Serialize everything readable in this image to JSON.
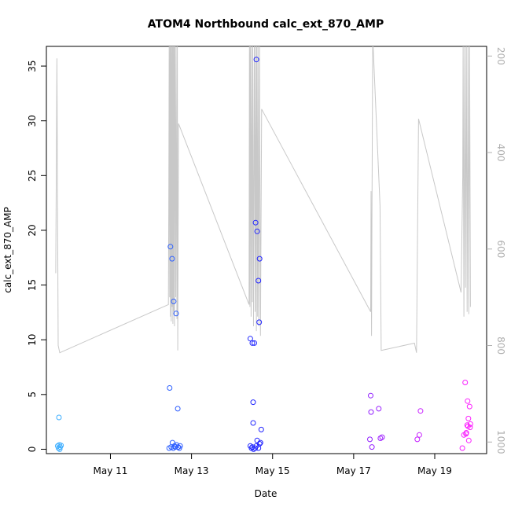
{
  "chart_data": {
    "type": "scatter",
    "title": "ATOM4 Northbound calc_ext_870_AMP",
    "xlabel": "Date",
    "ylabel": "calc_ext_870_AMP",
    "x_tick_labels": [
      "May 11",
      "May 13",
      "May 15",
      "May 17",
      "May 19"
    ],
    "x_tick_days": [
      11,
      13,
      15,
      17,
      19
    ],
    "xlim_days": [
      9.42,
      20.28
    ],
    "y_ticks": [
      0,
      5,
      10,
      15,
      20,
      25,
      30,
      35
    ],
    "ylim": [
      -0.4,
      36.8
    ],
    "y2_ticks": [
      200,
      400,
      600,
      800,
      1000
    ],
    "y2lim": [
      1024,
      180
    ],
    "y2_inverted": true,
    "grid": false,
    "colors": {
      "line": "#c8c8c8",
      "right_axis": "#b0b0b0",
      "points_start": "#3fb0ff",
      "points_mid": "#2020ff",
      "points_end": "#ff20ff"
    },
    "points": [
      [
        9.7,
        0.3
      ],
      [
        9.72,
        0.1
      ],
      [
        9.74,
        0.4
      ],
      [
        9.76,
        0.2
      ],
      [
        9.73,
        2.9
      ],
      [
        9.75,
        0.0
      ],
      [
        9.78,
        0.35
      ],
      [
        12.46,
        5.6
      ],
      [
        12.48,
        18.5
      ],
      [
        12.52,
        17.4
      ],
      [
        12.56,
        13.5
      ],
      [
        12.62,
        12.4
      ],
      [
        12.66,
        3.7
      ],
      [
        12.45,
        0.1
      ],
      [
        12.5,
        0.2
      ],
      [
        12.53,
        0.6
      ],
      [
        12.55,
        0.1
      ],
      [
        12.58,
        0.3
      ],
      [
        12.6,
        0.2
      ],
      [
        12.63,
        0.4
      ],
      [
        12.67,
        0.2
      ],
      [
        12.7,
        0.1
      ],
      [
        12.72,
        0.3
      ],
      [
        14.45,
        10.1
      ],
      [
        14.5,
        9.7
      ],
      [
        14.55,
        9.7
      ],
      [
        14.58,
        20.7
      ],
      [
        14.62,
        19.9
      ],
      [
        14.6,
        35.6
      ],
      [
        14.65,
        15.4
      ],
      [
        14.68,
        17.4
      ],
      [
        14.67,
        11.6
      ],
      [
        14.52,
        4.3
      ],
      [
        14.52,
        2.4
      ],
      [
        14.72,
        1.8
      ],
      [
        14.62,
        0.8
      ],
      [
        14.45,
        0.3
      ],
      [
        14.48,
        0.1
      ],
      [
        14.5,
        0.2
      ],
      [
        14.53,
        0.0
      ],
      [
        14.57,
        0.1
      ],
      [
        14.6,
        0.3
      ],
      [
        14.65,
        0.1
      ],
      [
        14.68,
        0.5
      ],
      [
        14.7,
        0.6
      ],
      [
        17.42,
        4.9
      ],
      [
        17.43,
        3.4
      ],
      [
        17.4,
        0.9
      ],
      [
        17.45,
        0.2
      ],
      [
        17.62,
        3.7
      ],
      [
        17.66,
        1.0
      ],
      [
        17.7,
        1.1
      ],
      [
        18.57,
        0.9
      ],
      [
        18.62,
        1.3
      ],
      [
        18.65,
        3.5
      ],
      [
        19.68,
        0.1
      ],
      [
        19.72,
        1.3
      ],
      [
        19.75,
        6.1
      ],
      [
        19.77,
        1.4
      ],
      [
        19.78,
        1.5
      ],
      [
        19.8,
        2.2
      ],
      [
        19.81,
        4.4
      ],
      [
        19.82,
        2.1
      ],
      [
        19.83,
        2.8
      ],
      [
        19.84,
        0.8
      ],
      [
        19.86,
        3.9
      ],
      [
        19.87,
        2.0
      ],
      [
        19.88,
        2.3
      ]
    ],
    "line_y2": [
      [
        9.65,
        650
      ],
      [
        9.68,
        205
      ],
      [
        9.71,
        800
      ],
      [
        9.75,
        815
      ],
      [
        12.43,
        715
      ],
      [
        12.44,
        500
      ],
      [
        12.45,
        170
      ],
      [
        12.46,
        700
      ],
      [
        12.47,
        170
      ],
      [
        12.48,
        740
      ],
      [
        12.49,
        170
      ],
      [
        12.5,
        750
      ],
      [
        12.51,
        170
      ],
      [
        12.52,
        720
      ],
      [
        12.53,
        170
      ],
      [
        12.54,
        755
      ],
      [
        12.55,
        170
      ],
      [
        12.56,
        730
      ],
      [
        12.57,
        170
      ],
      [
        12.58,
        760
      ],
      [
        12.59,
        170
      ],
      [
        12.61,
        700
      ],
      [
        12.62,
        170
      ],
      [
        12.64,
        745
      ],
      [
        12.65,
        170
      ],
      [
        12.66,
        810
      ],
      [
        12.68,
        340
      ],
      [
        14.42,
        715
      ],
      [
        14.43,
        170
      ],
      [
        14.44,
        720
      ],
      [
        14.45,
        170
      ],
      [
        14.47,
        740
      ],
      [
        14.48,
        170
      ],
      [
        14.5,
        710
      ],
      [
        14.51,
        170
      ],
      [
        14.53,
        760
      ],
      [
        14.55,
        170
      ],
      [
        14.57,
        730
      ],
      [
        14.58,
        170
      ],
      [
        14.6,
        770
      ],
      [
        14.61,
        170
      ],
      [
        14.63,
        740
      ],
      [
        14.64,
        170
      ],
      [
        14.66,
        760
      ],
      [
        14.68,
        170
      ],
      [
        14.7,
        780
      ],
      [
        14.73,
        310
      ],
      [
        17.42,
        730
      ],
      [
        17.43,
        480
      ],
      [
        17.44,
        780
      ],
      [
        17.45,
        545
      ],
      [
        17.47,
        160
      ],
      [
        17.65,
        510
      ],
      [
        17.68,
        810
      ],
      [
        18.5,
        795
      ],
      [
        18.55,
        815
      ],
      [
        18.6,
        330
      ],
      [
        19.65,
        690
      ],
      [
        19.69,
        450
      ],
      [
        19.7,
        170
      ],
      [
        19.72,
        740
      ],
      [
        19.74,
        170
      ],
      [
        19.76,
        680
      ],
      [
        19.78,
        170
      ],
      [
        19.8,
        730
      ],
      [
        19.82,
        170
      ],
      [
        19.84,
        735
      ],
      [
        19.86,
        170
      ],
      [
        19.88,
        720
      ]
    ]
  }
}
